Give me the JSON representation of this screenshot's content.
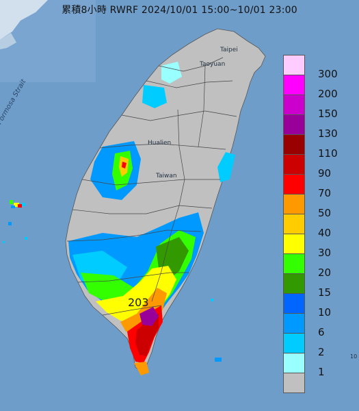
{
  "title": "累積8小時 RWRF 2024/10/01 15:00~10/01 23:00",
  "labels": {
    "strait": "Formosa Strait",
    "taipei": "Taipei",
    "taoyuan": "Taoyuan",
    "hualien": "Hualien",
    "taiwan_mid": "Taiwan",
    "max_value": "203",
    "edge_mark": "10"
  },
  "legend": [
    {
      "value": "300",
      "color": "#ffccff"
    },
    {
      "value": "200",
      "color": "#ff00ff"
    },
    {
      "value": "150",
      "color": "#cc00cc"
    },
    {
      "value": "130",
      "color": "#990099"
    },
    {
      "value": "110",
      "color": "#990000"
    },
    {
      "value": "90",
      "color": "#cc0000"
    },
    {
      "value": "70",
      "color": "#ff0000"
    },
    {
      "value": "50",
      "color": "#ff9900"
    },
    {
      "value": "40",
      "color": "#ffcc00"
    },
    {
      "value": "30",
      "color": "#ffff00"
    },
    {
      "value": "20",
      "color": "#33ff00"
    },
    {
      "value": "15",
      "color": "#339900"
    },
    {
      "value": "10",
      "color": "#0066ff"
    },
    {
      "value": "6",
      "color": "#0099ff"
    },
    {
      "value": "2",
      "color": "#00ccff"
    },
    {
      "value": "1",
      "color": "#99ffff"
    },
    {
      "value": "",
      "color": "#c0c0c0"
    }
  ],
  "colors": {
    "sea": "#6e9cc8",
    "land_gray": "#c0c0c0"
  }
}
